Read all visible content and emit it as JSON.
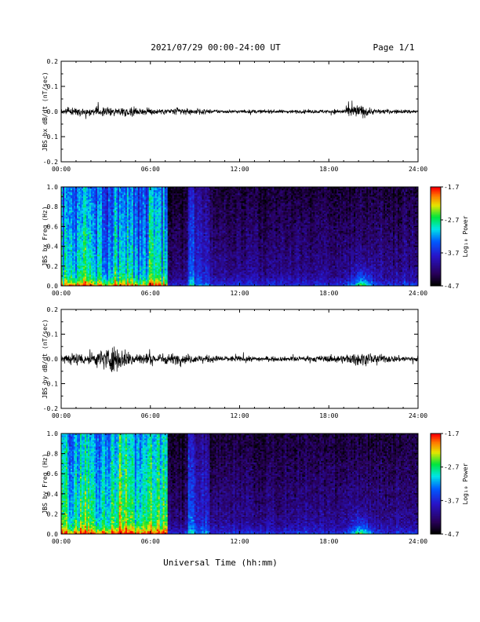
{
  "header": {
    "title": "2021/07/29  00:00-24:00 UT",
    "page": "Page 1/1"
  },
  "footer": {
    "xlabel": "Universal Time (hh:mm)"
  },
  "chart_data": [
    {
      "type": "line",
      "ylabel": "JBS bx dB/dt (nT/sec)",
      "xlim": [
        0,
        24
      ],
      "ylim": [
        -0.2,
        0.2
      ],
      "xticks": [
        "00:00",
        "06:00",
        "12:00",
        "18:00",
        "24:00"
      ],
      "yticks": [
        "-0.2",
        "-0.1",
        "0.0",
        "0.1",
        "0.2"
      ],
      "envelope_hours": [
        0,
        1,
        2,
        3,
        4,
        5,
        6,
        7,
        8,
        9,
        10,
        11,
        12,
        13,
        14,
        15,
        16,
        17,
        18,
        19,
        19.5,
        20,
        20.5,
        21,
        22,
        23,
        24
      ],
      "envelope_amplitude": [
        0.022,
        0.025,
        0.03,
        0.028,
        0.035,
        0.028,
        0.022,
        0.02,
        0.028,
        0.02,
        0.015,
        0.012,
        0.012,
        0.013,
        0.012,
        0.012,
        0.012,
        0.013,
        0.015,
        0.02,
        0.045,
        0.05,
        0.035,
        0.02,
        0.015,
        0.014,
        0.014
      ]
    },
    {
      "type": "heatmap",
      "ylabel": "JBS bx Freq (Hz)",
      "xlim": [
        0,
        24
      ],
      "ylim": [
        0,
        1.0
      ],
      "xticks": [
        "00:00",
        "06:00",
        "12:00",
        "18:00",
        "24:00"
      ],
      "yticks": [
        "0.0",
        "0.2",
        "0.4",
        "0.6",
        "0.8",
        "1.0"
      ],
      "colorbar": {
        "label": "Log₁₀ Power",
        "ticks": [
          "-1.7",
          "-2.7",
          "-3.7",
          "-4.7"
        ],
        "range": [
          -4.7,
          -1.7
        ]
      }
    },
    {
      "type": "line",
      "ylabel": "JBS by dB/dt (nT/sec)",
      "xlim": [
        0,
        24
      ],
      "ylim": [
        -0.2,
        0.2
      ],
      "xticks": [
        "00:00",
        "06:00",
        "12:00",
        "18:00",
        "24:00"
      ],
      "yticks": [
        "-0.2",
        "-0.1",
        "0.0",
        "0.1",
        "0.2"
      ],
      "envelope_hours": [
        0,
        1,
        2,
        3,
        3.5,
        4,
        5,
        6,
        7,
        8,
        9,
        10,
        11,
        12,
        13,
        14,
        15,
        16,
        17,
        18,
        19,
        20,
        21,
        22,
        23,
        24
      ],
      "envelope_amplitude": [
        0.035,
        0.045,
        0.04,
        0.08,
        0.1,
        0.07,
        0.05,
        0.035,
        0.04,
        0.035,
        0.03,
        0.025,
        0.022,
        0.02,
        0.018,
        0.016,
        0.016,
        0.018,
        0.02,
        0.025,
        0.03,
        0.045,
        0.035,
        0.025,
        0.022,
        0.022
      ]
    },
    {
      "type": "heatmap",
      "ylabel": "JBS by Freq (Hz)",
      "xlim": [
        0,
        24
      ],
      "ylim": [
        0,
        1.0
      ],
      "xticks": [
        "00:00",
        "06:00",
        "12:00",
        "18:00",
        "24:00"
      ],
      "yticks": [
        "0.0",
        "0.2",
        "0.4",
        "0.6",
        "0.8",
        "1.0"
      ],
      "colorbar": {
        "label": "Log₁₀ Power",
        "ticks": [
          "-1.7",
          "-2.7",
          "-3.7",
          "-4.7"
        ],
        "range": [
          -4.7,
          -1.7
        ]
      }
    }
  ]
}
